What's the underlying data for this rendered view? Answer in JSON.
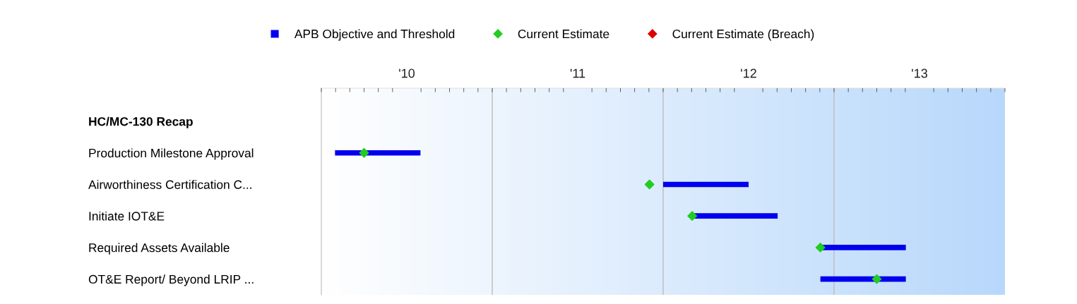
{
  "chart_data": {
    "type": "bar",
    "orientation": "horizontal",
    "categories": [
      "HC/MC-130 Recap",
      "Production Milestone Approval",
      "Airworthiness Certification C...",
      "Initiate IOT&E",
      "Required Assets Available",
      "OT&E Report/ Beyond LRIP ..."
    ],
    "xlim": [
      10,
      14
    ],
    "xticks": [
      {
        "value": 10.5,
        "label": "'10"
      },
      {
        "value": 11.5,
        "label": "'11"
      },
      {
        "value": 12.5,
        "label": "'12"
      },
      {
        "value": 13.5,
        "label": "'13"
      }
    ],
    "ref_lines": [
      {
        "axis": "x",
        "value": 11,
        "color": "#bbbbbb"
      },
      {
        "axis": "x",
        "value": 12,
        "color": "#bbbbbb"
      },
      {
        "axis": "x",
        "value": 13,
        "color": "#bbbbbb"
      }
    ],
    "legend": "top",
    "series": [
      {
        "name": "APB Objective and Threshold",
        "color": "#0000ee",
        "marker": "square",
        "base": [
          null,
          10.08,
          12.0,
          12.17,
          12.92,
          12.92
        ],
        "values": [
          null,
          0.5,
          0.5,
          0.5,
          0.5,
          0.5
        ]
      },
      {
        "name": "Current Estimate",
        "type": "scatter",
        "color": "#22cc22",
        "marker": "diamond",
        "values": [
          null,
          10.25,
          11.92,
          12.17,
          12.92,
          13.25
        ]
      },
      {
        "name": "Current Estimate (Breach)",
        "type": "scatter",
        "color": "#dd0000",
        "marker": "diamond",
        "values": [
          null,
          null,
          null,
          null,
          null,
          null
        ]
      }
    ]
  }
}
